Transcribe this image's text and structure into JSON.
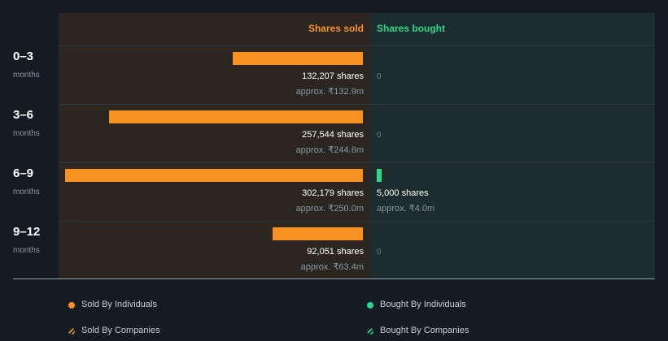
{
  "colors": {
    "sold": "#f79220",
    "bought": "#2ed88a"
  },
  "header": {
    "sold_label": "Shares sold",
    "bought_label": "Shares bought"
  },
  "chart_data": {
    "type": "bar",
    "orientation": "horizontal-diverging",
    "categories": [
      "0–3",
      "3–6",
      "6–9",
      "9–12"
    ],
    "category_unit": "months",
    "series": [
      {
        "name": "Shares sold",
        "values": [
          132207,
          257544,
          302179,
          92051
        ],
        "labels": [
          "132,207 shares",
          "257,544 shares",
          "302,179 shares",
          "92,051 shares"
        ],
        "approx": [
          "approx. ₹132.9m",
          "approx. ₹244.6m",
          "approx. ₹250.0m",
          "approx. ₹63.4m"
        ]
      },
      {
        "name": "Shares bought",
        "values": [
          0,
          0,
          5000,
          0
        ],
        "labels": [
          "0",
          "0",
          "5,000 shares",
          "0"
        ],
        "approx": [
          "",
          "",
          "approx. ₹4.0m",
          ""
        ]
      }
    ],
    "xlim": [
      0,
      302179
    ]
  },
  "legend": [
    {
      "label": "Sold By Individuals",
      "kind": "solid",
      "color": "#f79220"
    },
    {
      "label": "Bought By Individuals",
      "kind": "solid",
      "color": "#2ed88a"
    },
    {
      "label": "Sold By Companies",
      "kind": "hatched",
      "color": "#f79220"
    },
    {
      "label": "Bought By Companies",
      "kind": "hatched",
      "color": "#2ed88a"
    }
  ]
}
